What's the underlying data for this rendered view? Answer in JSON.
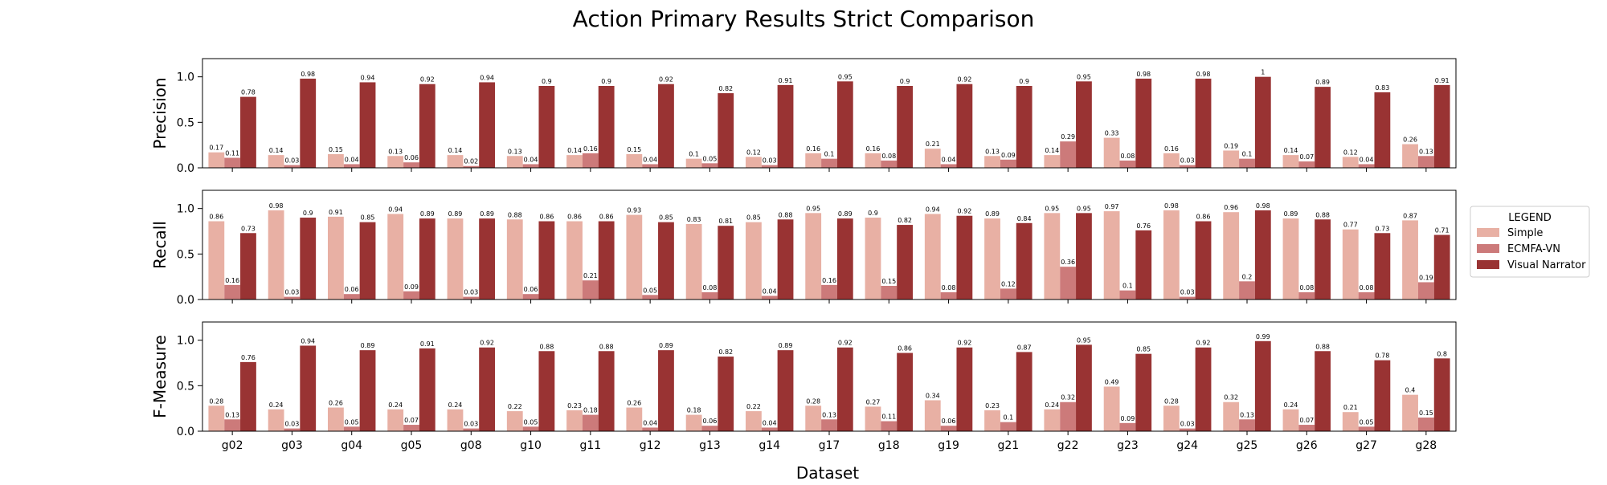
{
  "chart_data": {
    "type": "bar",
    "title": "Action Primary Results Strict Comparison",
    "xlabel": "Dataset",
    "categories": [
      "g02",
      "g03",
      "g04",
      "g05",
      "g08",
      "g10",
      "g11",
      "g12",
      "g13",
      "g14",
      "g17",
      "g18",
      "g19",
      "g21",
      "g22",
      "g23",
      "g24",
      "g25",
      "g26",
      "g27",
      "g28"
    ],
    "legend": {
      "title": "LEGEND",
      "placement": "right-center",
      "entries": [
        "Simple",
        "ECMFA-VN",
        "Visual Narrator"
      ]
    },
    "colors": {
      "Simple": "#e8b0a4",
      "ECMFA-VN": "#cc7a7a",
      "Visual Narrator": "#993333"
    },
    "panels": [
      {
        "ylabel": "Precision",
        "ylim": [
          0,
          1.2
        ],
        "yticks": [
          "0.0",
          "0.5",
          "1.0"
        ],
        "series": [
          {
            "name": "Simple",
            "values": [
              0.17,
              0.14,
              0.15,
              0.13,
              0.14,
              0.13,
              0.14,
              0.15,
              0.1,
              0.12,
              0.16,
              0.16,
              0.21,
              0.13,
              0.14,
              0.33,
              0.16,
              0.19,
              0.14,
              0.12,
              0.26
            ]
          },
          {
            "name": "ECMFA-VN",
            "values": [
              0.11,
              0.03,
              0.04,
              0.06,
              0.02,
              0.04,
              0.16,
              0.04,
              0.05,
              0.03,
              0.1,
              0.08,
              0.04,
              0.09,
              0.29,
              0.08,
              0.03,
              0.1,
              0.07,
              0.04,
              0.13
            ]
          },
          {
            "name": "Visual Narrator",
            "values": [
              0.78,
              0.98,
              0.94,
              0.92,
              0.94,
              0.9,
              0.9,
              0.92,
              0.82,
              0.91,
              0.95,
              0.9,
              0.92,
              0.9,
              0.95,
              0.98,
              0.98,
              1,
              0.89,
              0.83,
              0.91
            ]
          }
        ]
      },
      {
        "ylabel": "Recall",
        "ylim": [
          0,
          1.2
        ],
        "yticks": [
          "0.0",
          "0.5",
          "1.0"
        ],
        "series": [
          {
            "name": "Simple",
            "values": [
              0.86,
              0.98,
              0.91,
              0.94,
              0.89,
              0.88,
              0.86,
              0.93,
              0.83,
              0.85,
              0.95,
              0.9,
              0.94,
              0.89,
              0.95,
              0.97,
              0.98,
              0.96,
              0.89,
              0.77,
              0.87
            ]
          },
          {
            "name": "ECMFA-VN",
            "values": [
              0.16,
              0.03,
              0.06,
              0.09,
              0.03,
              0.06,
              0.21,
              0.05,
              0.08,
              0.04,
              0.16,
              0.15,
              0.08,
              0.12,
              0.36,
              0.1,
              0.03,
              0.2,
              0.08,
              0.08,
              0.19
            ]
          },
          {
            "name": "Visual Narrator",
            "values": [
              0.73,
              0.9,
              0.85,
              0.89,
              0.89,
              0.86,
              0.86,
              0.85,
              0.81,
              0.88,
              0.89,
              0.82,
              0.92,
              0.84,
              0.95,
              0.76,
              0.86,
              0.98,
              0.88,
              0.73,
              0.71
            ]
          }
        ]
      },
      {
        "ylabel": "F-Measure",
        "ylim": [
          0,
          1.2
        ],
        "yticks": [
          "0.0",
          "0.5",
          "1.0"
        ],
        "series": [
          {
            "name": "Simple",
            "values": [
              0.28,
              0.24,
              0.26,
              0.24,
              0.24,
              0.22,
              0.23,
              0.26,
              0.18,
              0.22,
              0.28,
              0.27,
              0.34,
              0.23,
              0.24,
              0.49,
              0.28,
              0.32,
              0.24,
              0.21,
              0.4
            ]
          },
          {
            "name": "ECMFA-VN",
            "values": [
              0.13,
              0.03,
              0.05,
              0.07,
              0.03,
              0.05,
              0.18,
              0.04,
              0.06,
              0.04,
              0.13,
              0.11,
              0.06,
              0.1,
              0.32,
              0.09,
              0.03,
              0.13,
              0.07,
              0.05,
              0.15
            ]
          },
          {
            "name": "Visual Narrator",
            "values": [
              0.76,
              0.94,
              0.89,
              0.91,
              0.92,
              0.88,
              0.88,
              0.89,
              0.82,
              0.89,
              0.92,
              0.86,
              0.92,
              0.87,
              0.95,
              0.85,
              0.92,
              0.99,
              0.88,
              0.78,
              0.8
            ]
          }
        ]
      }
    ]
  }
}
